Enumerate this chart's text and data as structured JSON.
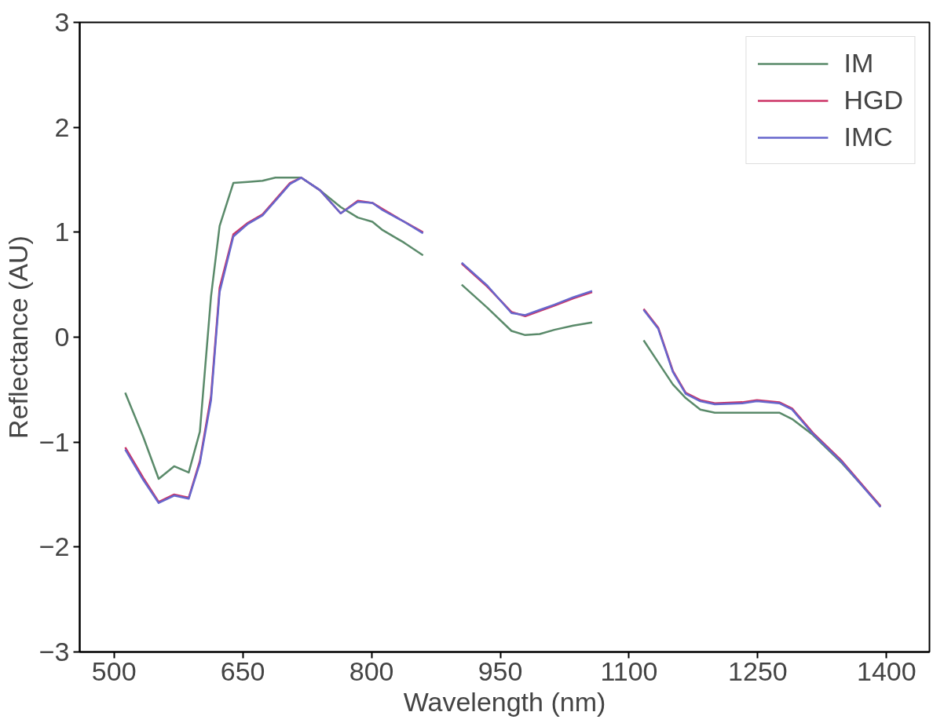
{
  "chart_data": {
    "type": "line",
    "xlabel": "Wavelength (nm)",
    "ylabel": "Reflectance (AU)",
    "x": [
      513,
      534,
      552,
      570,
      587,
      600,
      613,
      623,
      639,
      656,
      673,
      688,
      705,
      718,
      740,
      764,
      784,
      801,
      813,
      838,
      860,
      880,
      905,
      935,
      963,
      979,
      996,
      1013,
      1035,
      1057,
      1085,
      1117,
      1134,
      1151,
      1166,
      1183,
      1200,
      1232,
      1249,
      1275,
      1290,
      1314,
      1348,
      1393
    ],
    "xlim": [
      460,
      1450
    ],
    "xticks": [
      500,
      650,
      800,
      950,
      1100,
      1250,
      1400
    ],
    "ylim": [
      -3,
      3
    ],
    "yticks": [
      -3,
      -2,
      -1,
      0,
      1,
      2,
      3
    ],
    "series": [
      {
        "name": "IM",
        "color": "#5a8a6a",
        "values": [
          -0.53,
          -0.95,
          -1.35,
          -1.23,
          -1.29,
          -0.9,
          0.39,
          1.06,
          1.47,
          1.48,
          1.49,
          1.52,
          1.52,
          1.52,
          1.4,
          1.24,
          1.14,
          1.1,
          1.02,
          0.9,
          0.78,
          null,
          0.5,
          0.28,
          0.06,
          0.02,
          0.03,
          0.07,
          0.11,
          0.14,
          null,
          -0.03,
          -0.24,
          -0.45,
          -0.58,
          -0.69,
          -0.72,
          -0.72,
          -0.72,
          -0.72,
          -0.78,
          -0.93,
          -1.2,
          -1.61
        ]
      },
      {
        "name": "HGD",
        "color": "#cc3366",
        "values": [
          -1.05,
          -1.34,
          -1.57,
          -1.5,
          -1.53,
          -1.18,
          -0.56,
          0.47,
          0.98,
          1.09,
          1.17,
          1.31,
          1.47,
          1.52,
          1.4,
          1.18,
          1.3,
          1.28,
          1.22,
          1.1,
          1.0,
          null,
          0.7,
          0.48,
          0.24,
          0.2,
          0.25,
          0.3,
          0.37,
          0.43,
          null,
          0.27,
          0.09,
          -0.32,
          -0.53,
          -0.6,
          -0.63,
          -0.62,
          -0.6,
          -0.62,
          -0.68,
          -0.91,
          -1.18,
          -1.61
        ]
      },
      {
        "name": "IMC",
        "color": "#6666cc",
        "values": [
          -1.07,
          -1.36,
          -1.58,
          -1.51,
          -1.54,
          -1.2,
          -0.6,
          0.43,
          0.96,
          1.08,
          1.16,
          1.3,
          1.46,
          1.52,
          1.4,
          1.18,
          1.29,
          1.28,
          1.21,
          1.1,
          0.99,
          null,
          0.71,
          0.49,
          0.23,
          0.21,
          0.26,
          0.31,
          0.38,
          0.44,
          null,
          0.26,
          0.08,
          -0.33,
          -0.54,
          -0.61,
          -0.64,
          -0.63,
          -0.61,
          -0.63,
          -0.69,
          -0.92,
          -1.19,
          -1.62
        ]
      }
    ],
    "legend": "top right",
    "grid": false,
    "marker": "none",
    "line_style": "solid"
  }
}
